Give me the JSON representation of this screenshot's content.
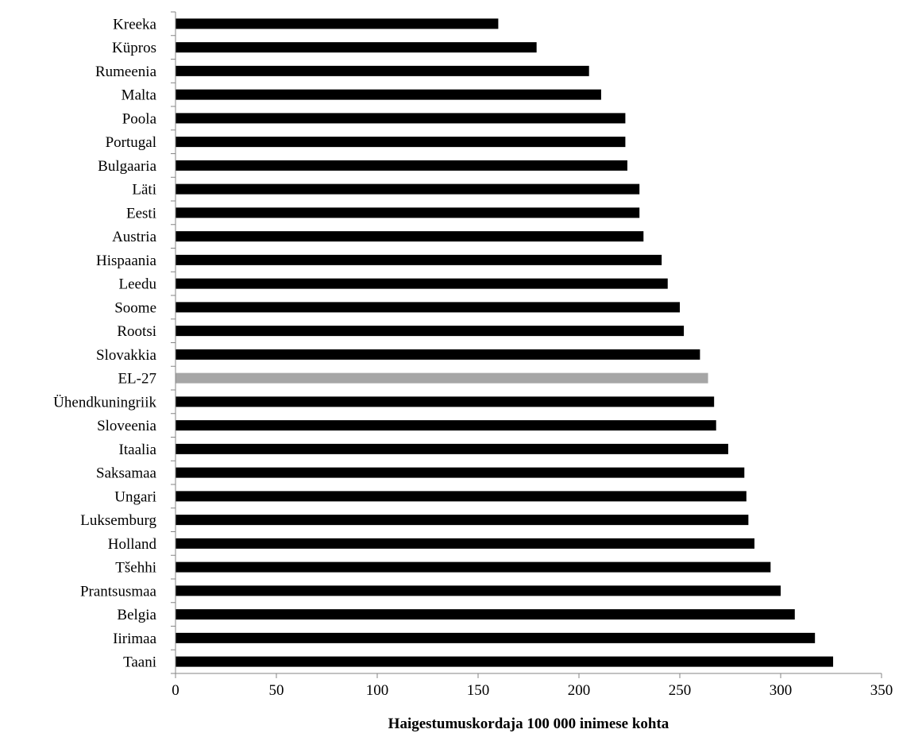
{
  "chart_data": {
    "type": "bar",
    "orientation": "horizontal",
    "categories": [
      "Kreeka",
      "Küpros",
      "Rumeenia",
      "Malta",
      "Poola",
      "Portugal",
      "Bulgaaria",
      "Läti",
      "Eesti",
      "Austria",
      "Hispaania",
      "Leedu",
      "Soome",
      "Rootsi",
      "Slovakkia",
      "EL-27",
      "Ühendkuningriik",
      "Sloveenia",
      "Itaalia",
      "Saksamaa",
      "Ungari",
      "Luksemburg",
      "Holland",
      "Tšehhi",
      "Prantsusmaa",
      "Belgia",
      "Iirimaa",
      "Taani"
    ],
    "values": [
      160,
      179,
      205,
      211,
      223,
      223,
      224,
      230,
      230,
      232,
      241,
      244,
      250,
      252,
      260,
      264,
      267,
      268,
      274,
      282,
      283,
      284,
      287,
      295,
      300,
      307,
      317,
      326
    ],
    "highlight_category": "EL-27",
    "colors": {
      "bar": "#000000",
      "highlight": "#a6a6a6",
      "axis": "#868686"
    },
    "xlim": [
      0,
      350
    ],
    "xticks": [
      0,
      50,
      100,
      150,
      200,
      250,
      300,
      350
    ],
    "xlabel": "Haigestumuskordaja 100 000 inimese kohta",
    "title": "",
    "grid": false,
    "legend": "none"
  }
}
